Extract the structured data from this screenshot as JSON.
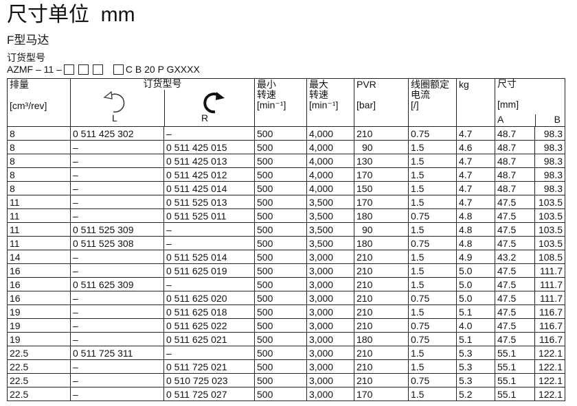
{
  "title": "尺寸单位  mm",
  "subtitle": "F型马达",
  "order_label": "订货型号",
  "code_prefix": "AZMF – 11 –",
  "code_suffix": "C B 20 P GXXXX",
  "headers": {
    "disp": "排量",
    "disp_unit": "[cm³/rev]",
    "order": "订货型号",
    "L": "L",
    "R": "R",
    "min": "最小\n转速",
    "min_unit": "[min⁻¹]",
    "max": "最大\n转速",
    "max_unit": "[min⁻¹]",
    "pvr": "PVR",
    "pvr_unit": "[bar]",
    "cur": "线圈额定\n电流",
    "cur_unit": "[/]",
    "kg": "kg",
    "dim": "尺寸",
    "dim_unit": "[mm]",
    "A": "A",
    "B": "B"
  },
  "icons": {
    "L": "counterclockwise-arrow-icon",
    "R": "clockwise-arrow-icon"
  },
  "rows": [
    [
      "8",
      "0 511 425 302",
      "–",
      "500",
      "4,000",
      "210",
      "0.75",
      "4.7",
      "48.7",
      "98.3"
    ],
    [
      "8",
      "–",
      "0 511 425 015",
      "500",
      "4,000",
      "90",
      "1.5",
      "4.6",
      "48.7",
      "98.3"
    ],
    [
      "8",
      "–",
      "0 511 425 013",
      "500",
      "4,000",
      "130",
      "1.5",
      "4.7",
      "48.7",
      "98.3"
    ],
    [
      "8",
      "–",
      "0 511 425 012",
      "500",
      "4,000",
      "170",
      "1.5",
      "4.7",
      "48.7",
      "98.3"
    ],
    [
      "8",
      "–",
      "0 511 425 014",
      "500",
      "4,000",
      "150",
      "1.5",
      "4.7",
      "48.7",
      "98.3"
    ],
    [
      "11",
      "–",
      "0 511 525 013",
      "500",
      "3,500",
      "170",
      "1.5",
      "4.7",
      "47.5",
      "103.5"
    ],
    [
      "11",
      "–",
      "0 511 525 011",
      "500",
      "3,500",
      "180",
      "0.75",
      "4.8",
      "47.5",
      "103.5"
    ],
    [
      "11",
      "0 511 525 309",
      "–",
      "500",
      "3,500",
      "90",
      "1.5",
      "4.8",
      "47.5",
      "103.5"
    ],
    [
      "11",
      "0 511 525 308",
      "–",
      "500",
      "3,500",
      "180",
      "0.75",
      "4.8",
      "47.5",
      "103.5"
    ],
    [
      "14",
      "–",
      "0 511 525 014",
      "500",
      "3,000",
      "210",
      "1.5",
      "4.9",
      "43.2",
      "108.5"
    ],
    [
      "16",
      "–",
      "0 511 625 019",
      "500",
      "3,000",
      "210",
      "1.5",
      "5.0",
      "47.5",
      "111.7"
    ],
    [
      "16",
      "0 511 625 309",
      "–",
      "500",
      "3,000",
      "210",
      "1.5",
      "5.0",
      "47.5",
      "111.7"
    ],
    [
      "16",
      "–",
      "0 511 625 020",
      "500",
      "3,000",
      "210",
      "0.75",
      "5.0",
      "47.5",
      "111.7"
    ],
    [
      "19",
      "–",
      "0 511 625 018",
      "500",
      "3,000",
      "210",
      "1.5",
      "5.1",
      "47.5",
      "116.7"
    ],
    [
      "19",
      "–",
      "0 511 625 022",
      "500",
      "3,000",
      "210",
      "0.75",
      "4.0",
      "47.5",
      "116.7"
    ],
    [
      "19",
      "–",
      "0 511 625 021",
      "500",
      "3,000",
      "180",
      "0.75",
      "5.1",
      "47.5",
      "116.7"
    ],
    [
      "22.5",
      "0 511 725 311",
      "–",
      "500",
      "3,000",
      "210",
      "1.5",
      "5.3",
      "55.1",
      "122.1"
    ],
    [
      "22.5",
      "–",
      "0 511 725 021",
      "500",
      "3,000",
      "210",
      "1.5",
      "5.3",
      "55.1",
      "122.1"
    ],
    [
      "22.5",
      "–",
      "0 510 725 023",
      "500",
      "3,000",
      "210",
      "0.75",
      "5.3",
      "55.1",
      "122.1"
    ],
    [
      "22.5",
      "–",
      "0 511 725 027",
      "500",
      "3,000",
      "170",
      "1.5",
      "5.2",
      "55.1",
      "122.1"
    ]
  ]
}
